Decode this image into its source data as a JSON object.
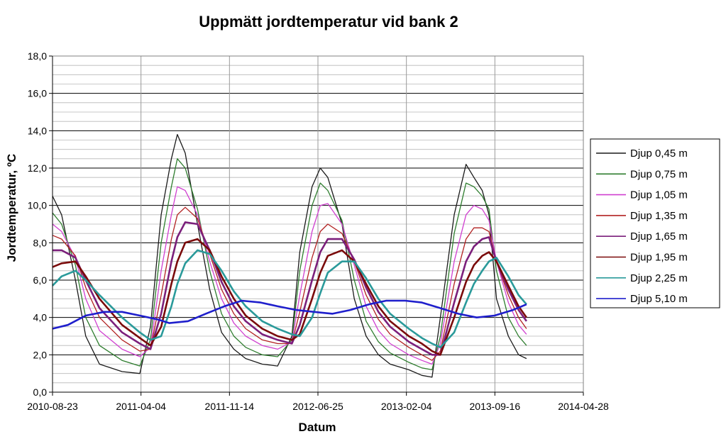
{
  "chart_data": {
    "type": "line",
    "title": "Uppmätt jordtemperatur vid bank 2",
    "xlabel": "Datum",
    "ylabel": "Jordtemperatur, ºC",
    "ylim": [
      0,
      18
    ],
    "y_ticks": [
      "0,0",
      "2,0",
      "4,0",
      "6,0",
      "8,0",
      "10,0",
      "12,0",
      "14,0",
      "16,0",
      "18,0"
    ],
    "x_ticks": [
      "2010-08-23",
      "2011-04-04",
      "2011-11-14",
      "2012-06-25",
      "2013-02-04",
      "2013-09-16",
      "2014-04-28"
    ],
    "xlim": [
      "2010-08-23",
      "2014-04-28"
    ],
    "grid": true,
    "legend_position": "right",
    "series": [
      {
        "name": "Djup 0,45 m",
        "color": "#1a1a1a",
        "x": [
          "2010-08-23",
          "2010-09-15",
          "2010-10-20",
          "2010-11-15",
          "2010-12-20",
          "2011-02-15",
          "2011-04-01",
          "2011-04-28",
          "2011-05-25",
          "2011-06-20",
          "2011-07-05",
          "2011-07-25",
          "2011-08-25",
          "2011-09-25",
          "2011-10-25",
          "2011-11-25",
          "2011-12-25",
          "2012-02-05",
          "2012-03-15",
          "2012-04-20",
          "2012-05-10",
          "2012-06-10",
          "2012-07-01",
          "2012-07-20",
          "2012-08-25",
          "2012-09-25",
          "2012-10-25",
          "2012-11-25",
          "2012-12-25",
          "2013-02-10",
          "2013-03-15",
          "2013-04-10",
          "2013-05-01",
          "2013-06-05",
          "2013-07-05",
          "2013-07-25",
          "2013-08-15",
          "2013-09-01",
          "2013-09-20",
          "2013-10-20",
          "2013-11-15",
          "2013-12-05"
        ],
        "values": [
          10.5,
          9.5,
          6.0,
          3.0,
          1.5,
          1.1,
          1.0,
          3.5,
          9.5,
          12.5,
          13.8,
          12.8,
          9.0,
          5.5,
          3.2,
          2.3,
          1.8,
          1.5,
          1.4,
          3.0,
          7.5,
          11.0,
          12.0,
          11.5,
          9.0,
          5.0,
          3.0,
          2.0,
          1.5,
          1.2,
          0.9,
          0.8,
          4.0,
          9.5,
          12.2,
          11.5,
          10.8,
          9.5,
          5.0,
          3.0,
          2.0,
          1.8
        ]
      },
      {
        "name": "Djup 0,75 m",
        "color": "#2e7d2e",
        "x": [
          "2010-08-23",
          "2010-09-15",
          "2010-10-20",
          "2010-11-15",
          "2010-12-20",
          "2011-02-15",
          "2011-04-01",
          "2011-04-28",
          "2011-05-25",
          "2011-06-20",
          "2011-07-05",
          "2011-07-25",
          "2011-08-25",
          "2011-09-25",
          "2011-10-25",
          "2011-11-25",
          "2011-12-25",
          "2012-02-05",
          "2012-03-15",
          "2012-04-20",
          "2012-05-10",
          "2012-06-10",
          "2012-07-01",
          "2012-07-20",
          "2012-08-25",
          "2012-09-25",
          "2012-10-25",
          "2012-11-25",
          "2012-12-25",
          "2013-02-10",
          "2013-03-15",
          "2013-04-10",
          "2013-05-01",
          "2013-06-05",
          "2013-07-05",
          "2013-07-25",
          "2013-08-15",
          "2013-09-01",
          "2013-09-20",
          "2013-10-20",
          "2013-11-15",
          "2013-12-05"
        ],
        "values": [
          9.6,
          9.0,
          6.8,
          4.0,
          2.5,
          1.7,
          1.4,
          2.8,
          8.0,
          11.0,
          12.5,
          12.0,
          9.8,
          6.5,
          4.2,
          3.0,
          2.4,
          2.0,
          1.9,
          2.8,
          6.5,
          10.0,
          11.2,
          10.8,
          9.2,
          6.0,
          3.8,
          2.7,
          2.1,
          1.6,
          1.3,
          1.2,
          3.0,
          8.5,
          11.2,
          11.0,
          10.5,
          9.8,
          6.5,
          4.0,
          3.0,
          2.5
        ]
      },
      {
        "name": "Djup 1,05 m",
        "color": "#d040d0",
        "x": [
          "2010-08-23",
          "2010-09-15",
          "2010-10-20",
          "2010-11-15",
          "2010-12-20",
          "2011-02-15",
          "2011-04-01",
          "2011-04-28",
          "2011-05-25",
          "2011-06-20",
          "2011-07-05",
          "2011-07-25",
          "2011-08-25",
          "2011-09-25",
          "2011-10-25",
          "2011-11-25",
          "2011-12-25",
          "2012-02-05",
          "2012-03-15",
          "2012-04-20",
          "2012-05-10",
          "2012-06-10",
          "2012-07-01",
          "2012-07-20",
          "2012-08-25",
          "2012-09-25",
          "2012-10-25",
          "2012-11-25",
          "2012-12-25",
          "2013-02-10",
          "2013-03-15",
          "2013-04-10",
          "2013-05-01",
          "2013-06-05",
          "2013-07-05",
          "2013-07-25",
          "2013-08-15",
          "2013-09-01",
          "2013-09-20",
          "2013-10-20",
          "2013-11-15",
          "2013-12-05"
        ],
        "values": [
          9.0,
          8.6,
          7.2,
          5.0,
          3.3,
          2.3,
          1.9,
          2.4,
          6.5,
          9.5,
          11.0,
          10.8,
          9.5,
          7.0,
          5.0,
          3.7,
          3.0,
          2.5,
          2.3,
          2.7,
          5.2,
          8.6,
          10.0,
          10.1,
          9.0,
          6.8,
          4.6,
          3.3,
          2.6,
          2.0,
          1.7,
          1.5,
          2.6,
          7.0,
          9.5,
          10.0,
          9.8,
          9.2,
          7.0,
          4.8,
          3.6,
          3.1
        ]
      },
      {
        "name": "Djup 1,35 m",
        "color": "#b22222",
        "x": [
          "2010-08-23",
          "2010-09-15",
          "2010-10-20",
          "2010-11-15",
          "2010-12-20",
          "2011-02-15",
          "2011-04-01",
          "2011-04-28",
          "2011-05-25",
          "2011-06-20",
          "2011-07-05",
          "2011-07-25",
          "2011-08-25",
          "2011-09-25",
          "2011-10-25",
          "2011-11-25",
          "2011-12-25",
          "2012-02-05",
          "2012-03-15",
          "2012-04-20",
          "2012-05-10",
          "2012-06-10",
          "2012-07-01",
          "2012-07-20",
          "2012-08-25",
          "2012-09-25",
          "2012-10-25",
          "2012-11-25",
          "2012-12-25",
          "2013-02-10",
          "2013-03-15",
          "2013-04-10",
          "2013-05-01",
          "2013-06-05",
          "2013-07-05",
          "2013-07-25",
          "2013-08-15",
          "2013-09-01",
          "2013-09-20",
          "2013-10-20",
          "2013-11-15",
          "2013-12-05"
        ],
        "values": [
          8.4,
          8.2,
          7.3,
          5.6,
          4.0,
          2.8,
          2.2,
          2.3,
          5.2,
          8.2,
          9.5,
          9.9,
          9.3,
          7.4,
          5.5,
          4.2,
          3.4,
          2.8,
          2.6,
          2.6,
          4.3,
          7.2,
          8.6,
          9.0,
          8.5,
          7.0,
          5.2,
          3.9,
          3.1,
          2.4,
          2.0,
          1.7,
          2.2,
          5.8,
          8.2,
          8.8,
          8.8,
          8.6,
          7.0,
          5.2,
          4.0,
          3.4
        ]
      },
      {
        "name": "Djup 1,65 m",
        "color": "#7b1f7b",
        "x": [
          "2010-08-23",
          "2010-09-15",
          "2010-10-20",
          "2010-11-15",
          "2010-12-20",
          "2011-02-15",
          "2011-04-01",
          "2011-04-28",
          "2011-05-25",
          "2011-06-20",
          "2011-07-05",
          "2011-07-25",
          "2011-08-25",
          "2011-09-25",
          "2011-10-25",
          "2011-11-25",
          "2011-12-25",
          "2012-02-05",
          "2012-03-15",
          "2012-04-20",
          "2012-05-10",
          "2012-06-10",
          "2012-07-01",
          "2012-07-20",
          "2012-08-25",
          "2012-09-25",
          "2012-10-25",
          "2012-11-25",
          "2012-12-25",
          "2013-02-10",
          "2013-03-15",
          "2013-04-10",
          "2013-05-01",
          "2013-06-05",
          "2013-07-05",
          "2013-07-25",
          "2013-08-15",
          "2013-09-01",
          "2013-09-20",
          "2013-10-20",
          "2013-11-15",
          "2013-12-05"
        ],
        "values": [
          7.6,
          7.6,
          7.2,
          6.0,
          4.5,
          3.2,
          2.6,
          2.3,
          4.2,
          7.0,
          8.3,
          9.1,
          9.0,
          7.6,
          5.9,
          4.6,
          3.8,
          3.1,
          2.8,
          2.6,
          3.6,
          6.0,
          7.5,
          8.2,
          8.2,
          7.1,
          5.6,
          4.3,
          3.5,
          2.7,
          2.3,
          2.0,
          2.0,
          4.8,
          7.0,
          7.8,
          8.2,
          8.3,
          7.0,
          5.5,
          4.4,
          3.8
        ]
      },
      {
        "name": "Djup 1,95 m",
        "color": "#7a0a0a",
        "x": [
          "2010-08-23",
          "2010-09-15",
          "2010-10-20",
          "2010-11-15",
          "2010-12-20",
          "2011-02-15",
          "2011-04-01",
          "2011-04-28",
          "2011-05-25",
          "2011-06-20",
          "2011-07-05",
          "2011-07-25",
          "2011-08-25",
          "2011-09-25",
          "2011-10-25",
          "2011-11-25",
          "2011-12-25",
          "2012-02-05",
          "2012-03-15",
          "2012-04-20",
          "2012-05-10",
          "2012-06-10",
          "2012-07-01",
          "2012-07-20",
          "2012-08-25",
          "2012-09-25",
          "2012-10-25",
          "2012-11-25",
          "2012-12-25",
          "2013-02-10",
          "2013-03-15",
          "2013-04-10",
          "2013-05-01",
          "2013-06-05",
          "2013-07-05",
          "2013-07-25",
          "2013-08-15",
          "2013-09-01",
          "2013-09-20",
          "2013-10-20",
          "2013-11-15",
          "2013-12-05"
        ],
        "values": [
          6.7,
          6.9,
          7.0,
          6.2,
          5.0,
          3.6,
          2.9,
          2.5,
          3.5,
          5.8,
          7.0,
          8.0,
          8.2,
          7.6,
          6.2,
          5.0,
          4.1,
          3.4,
          3.0,
          2.8,
          3.1,
          5.0,
          6.4,
          7.3,
          7.6,
          7.0,
          5.8,
          4.6,
          3.8,
          3.0,
          2.6,
          2.2,
          2.0,
          4.0,
          5.9,
          6.8,
          7.3,
          7.5,
          7.0,
          5.7,
          4.6,
          4.0
        ]
      },
      {
        "name": "Djup 2,25 m",
        "color": "#2a9a9a",
        "x": [
          "2010-08-23",
          "2010-09-15",
          "2010-10-20",
          "2010-11-15",
          "2010-12-20",
          "2011-02-15",
          "2011-04-01",
          "2011-04-28",
          "2011-05-25",
          "2011-06-20",
          "2011-07-05",
          "2011-07-25",
          "2011-08-25",
          "2011-09-25",
          "2011-10-25",
          "2011-11-25",
          "2011-12-25",
          "2012-02-05",
          "2012-03-15",
          "2012-04-20",
          "2012-05-10",
          "2012-06-10",
          "2012-07-01",
          "2012-07-20",
          "2012-08-25",
          "2012-09-25",
          "2012-10-25",
          "2012-11-25",
          "2012-12-25",
          "2013-02-10",
          "2013-03-15",
          "2013-04-10",
          "2013-05-01",
          "2013-06-05",
          "2013-07-05",
          "2013-07-25",
          "2013-08-15",
          "2013-09-01",
          "2013-09-20",
          "2013-10-20",
          "2013-11-15",
          "2013-12-05"
        ],
        "values": [
          5.7,
          6.2,
          6.5,
          6.0,
          5.2,
          4.0,
          3.2,
          2.8,
          3.0,
          4.6,
          5.8,
          6.9,
          7.6,
          7.4,
          6.5,
          5.4,
          4.6,
          3.8,
          3.4,
          3.1,
          3.0,
          4.0,
          5.3,
          6.4,
          7.0,
          7.0,
          6.1,
          5.0,
          4.2,
          3.4,
          2.9,
          2.6,
          2.4,
          3.2,
          4.8,
          5.8,
          6.5,
          7.0,
          7.2,
          6.2,
          5.2,
          4.7
        ]
      },
      {
        "name": "Djup 5,10 m",
        "color": "#1f1fcc",
        "x": [
          "2010-08-23",
          "2010-10-01",
          "2010-11-15",
          "2011-01-01",
          "2011-02-15",
          "2011-04-01",
          "2011-05-15",
          "2011-06-15",
          "2011-08-01",
          "2011-09-15",
          "2011-11-01",
          "2011-12-15",
          "2012-02-01",
          "2012-03-15",
          "2012-05-01",
          "2012-06-15",
          "2012-08-01",
          "2012-09-15",
          "2012-11-01",
          "2012-12-15",
          "2013-02-01",
          "2013-03-15",
          "2013-05-01",
          "2013-06-15",
          "2013-08-01",
          "2013-09-15",
          "2013-11-01",
          "2013-12-05"
        ],
        "values": [
          3.4,
          3.6,
          4.1,
          4.3,
          4.3,
          4.1,
          3.9,
          3.7,
          3.8,
          4.2,
          4.6,
          4.9,
          4.8,
          4.6,
          4.4,
          4.3,
          4.2,
          4.4,
          4.7,
          4.9,
          4.9,
          4.8,
          4.5,
          4.2,
          4.0,
          4.1,
          4.4,
          4.7
        ]
      }
    ]
  }
}
